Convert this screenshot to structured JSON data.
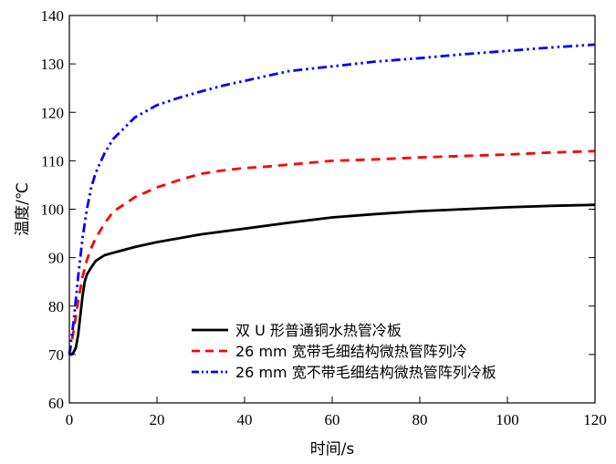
{
  "chart_data": {
    "type": "line",
    "title": "",
    "xlabel": "时间/s",
    "ylabel": "温度/℃",
    "xlim": [
      0,
      120
    ],
    "ylim": [
      60,
      140
    ],
    "xticks": [
      0,
      20,
      40,
      60,
      80,
      100,
      120
    ],
    "yticks": [
      60,
      70,
      80,
      90,
      100,
      110,
      120,
      130,
      140
    ],
    "grid": false,
    "legend_position": "bottom-right",
    "series": [
      {
        "name": "双 U 形普通铜水热管冷板",
        "color": "#000000",
        "dash": "solid",
        "x": [
          0,
          0.5,
          1,
          1.5,
          2,
          2.5,
          3,
          3.5,
          4,
          5,
          6,
          8,
          10,
          15,
          20,
          30,
          40,
          50,
          60,
          70,
          80,
          90,
          100,
          110,
          120
        ],
        "y": [
          70,
          70,
          70.5,
          71.5,
          74,
          78,
          82,
          85,
          86.5,
          88,
          89.3,
          90.5,
          91,
          92.2,
          93.2,
          94.8,
          96,
          97.2,
          98.3,
          99,
          99.6,
          100,
          100.4,
          100.7,
          100.9
        ]
      },
      {
        "name": "26  mm  宽带毛细结构微热管阵列冷",
        "color": "#ff0000",
        "dash": "dashed",
        "x": [
          0,
          1,
          2,
          3,
          4,
          5,
          6,
          8,
          10,
          15,
          20,
          25,
          30,
          35,
          40,
          45,
          50,
          55,
          60,
          70,
          80,
          90,
          100,
          110,
          120
        ],
        "y": [
          70,
          75,
          81,
          86,
          89.5,
          92,
          94,
          97,
          99.5,
          102.5,
          104.5,
          106,
          107.3,
          108,
          108.5,
          108.8,
          109.2,
          109.6,
          110,
          110.3,
          110.7,
          111,
          111.3,
          111.7,
          112
        ]
      },
      {
        "name": "26 mm 宽不带毛细结构微热管阵列冷板",
        "color": "#0000ff",
        "dash": "dashdotdot",
        "x": [
          0,
          1,
          2,
          3,
          4,
          5,
          6,
          8,
          10,
          15,
          20,
          25,
          30,
          35,
          40,
          45,
          50,
          55,
          60,
          70,
          80,
          90,
          100,
          110,
          120
        ],
        "y": [
          70,
          77,
          86,
          94,
          100,
          104.5,
          107.5,
          111.5,
          114.5,
          119,
          121.5,
          123,
          124.3,
          125.5,
          126.5,
          127.5,
          128.5,
          129,
          129.5,
          130.5,
          131.2,
          132,
          132.7,
          133.4,
          134
        ]
      }
    ]
  }
}
